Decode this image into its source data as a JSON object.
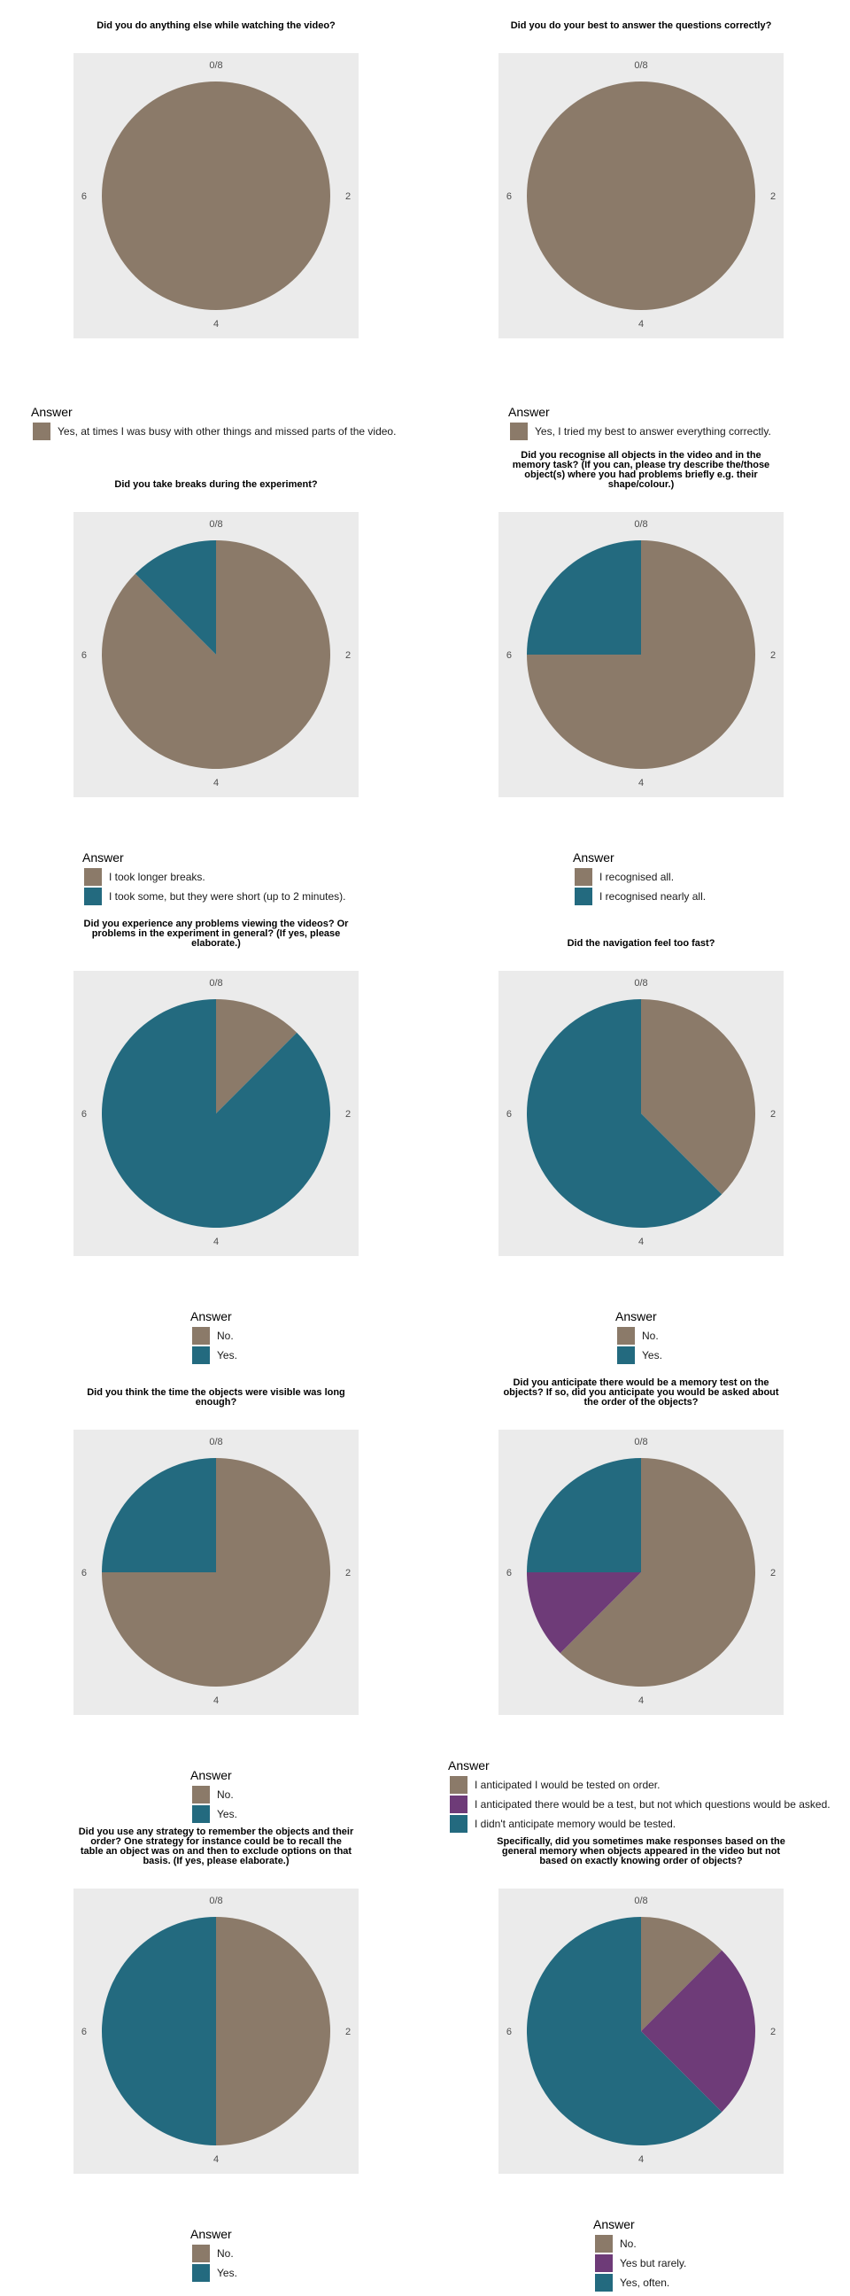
{
  "colors": {
    "panel": "#ebebeb",
    "brown": "#8b7a69",
    "teal": "#236a7f",
    "purple": "#6e3b78"
  },
  "chart_data": [
    {
      "type": "pie",
      "title": [
        "Did you do anything else while watching the video?"
      ],
      "theta_ticks": [
        "0/8",
        "2",
        "4",
        "6"
      ],
      "legend_title": "Answer",
      "series": [
        {
          "name": "Yes, at times I was busy with other things and missed parts of the video.",
          "value": 8,
          "color": "#8b7a69"
        }
      ]
    },
    {
      "type": "pie",
      "title": [
        "Did you do your best to answer the questions correctly?"
      ],
      "theta_ticks": [
        "0/8",
        "2",
        "4",
        "6"
      ],
      "legend_title": "Answer",
      "series": [
        {
          "name": "Yes, I tried my best to answer everything correctly.",
          "value": 8,
          "color": "#8b7a69"
        }
      ]
    },
    {
      "type": "pie",
      "title": [
        "Did you take breaks during the experiment?"
      ],
      "theta_ticks": [
        "0/8",
        "2",
        "4",
        "6"
      ],
      "legend_title": "Answer",
      "series": [
        {
          "name": "I took longer breaks.",
          "value": 7,
          "color": "#8b7a69"
        },
        {
          "name": "I took some, but they were short (up to 2 minutes).",
          "value": 1,
          "color": "#236a7f"
        }
      ]
    },
    {
      "type": "pie",
      "title": [
        "Did you recognise all objects in the video and in the",
        "memory task? (If you can, please try describe the/those",
        "object(s) where you had problems briefly e.g. their",
        "shape/colour.)"
      ],
      "theta_ticks": [
        "0/8",
        "2",
        "4",
        "6"
      ],
      "legend_title": "Answer",
      "series": [
        {
          "name": "I recognised all.",
          "value": 6,
          "color": "#8b7a69"
        },
        {
          "name": "I recognised nearly all.",
          "value": 2,
          "color": "#236a7f"
        }
      ]
    },
    {
      "type": "pie",
      "title": [
        "Did you experience any problems viewing the videos? Or",
        "problems in the experiment in general? (If yes, please",
        "elaborate.)"
      ],
      "theta_ticks": [
        "0/8",
        "2",
        "4",
        "6"
      ],
      "legend_title": "Answer",
      "series": [
        {
          "name": "No.",
          "value": 1,
          "color": "#8b7a69"
        },
        {
          "name": "Yes.",
          "value": 7,
          "color": "#236a7f"
        }
      ]
    },
    {
      "type": "pie",
      "title": [
        "Did the navigation feel too fast?"
      ],
      "theta_ticks": [
        "0/8",
        "2",
        "4",
        "6"
      ],
      "legend_title": "Answer",
      "series": [
        {
          "name": "No.",
          "value": 3,
          "color": "#8b7a69"
        },
        {
          "name": "Yes.",
          "value": 5,
          "color": "#236a7f"
        }
      ]
    },
    {
      "type": "pie",
      "title": [
        "Did you think the time the objects were visible was long",
        "enough?"
      ],
      "theta_ticks": [
        "0/8",
        "2",
        "4",
        "6"
      ],
      "legend_title": "Answer",
      "series": [
        {
          "name": "No.",
          "value": 6,
          "color": "#8b7a69"
        },
        {
          "name": "Yes.",
          "value": 2,
          "color": "#236a7f"
        }
      ]
    },
    {
      "type": "pie",
      "title": [
        "Did you anticipate there would be a memory test on the",
        "objects? If so, did you anticipate you would be asked about",
        "the order of the objects?"
      ],
      "theta_ticks": [
        "0/8",
        "2",
        "4",
        "6"
      ],
      "legend_title": "Answer",
      "series": [
        {
          "name": "I anticipated I would be tested on order.",
          "value": 5,
          "color": "#8b7a69"
        },
        {
          "name": "I anticipated there would be a test, but not which questions would be asked.",
          "value": 1,
          "color": "#6e3b78"
        },
        {
          "name": "I didn't anticipate memory would be tested.",
          "value": 2,
          "color": "#236a7f"
        }
      ]
    },
    {
      "type": "pie",
      "title": [
        "Did you use any strategy to remember the objects and their",
        "order? One strategy for instance could be to recall the",
        "table an object was on and then to exclude options on that",
        "basis. (If yes, please elaborate.)"
      ],
      "theta_ticks": [
        "0/8",
        "2",
        "4",
        "6"
      ],
      "legend_title": "Answer",
      "series": [
        {
          "name": "No.",
          "value": 4,
          "color": "#8b7a69"
        },
        {
          "name": "Yes.",
          "value": 4,
          "color": "#236a7f"
        }
      ]
    },
    {
      "type": "pie",
      "title": [
        "Specifically, did you sometimes make responses based on the",
        "general memory when objects appeared in the video but not",
        "based on exactly knowing order of objects?"
      ],
      "theta_ticks": [
        "0/8",
        "2",
        "4",
        "6"
      ],
      "legend_title": "Answer",
      "series": [
        {
          "name": "No.",
          "value": 1,
          "color": "#8b7a69"
        },
        {
          "name": "Yes but rarely.",
          "value": 2,
          "color": "#6e3b78"
        },
        {
          "name": "Yes, often.",
          "value": 5,
          "color": "#236a7f"
        }
      ]
    }
  ]
}
